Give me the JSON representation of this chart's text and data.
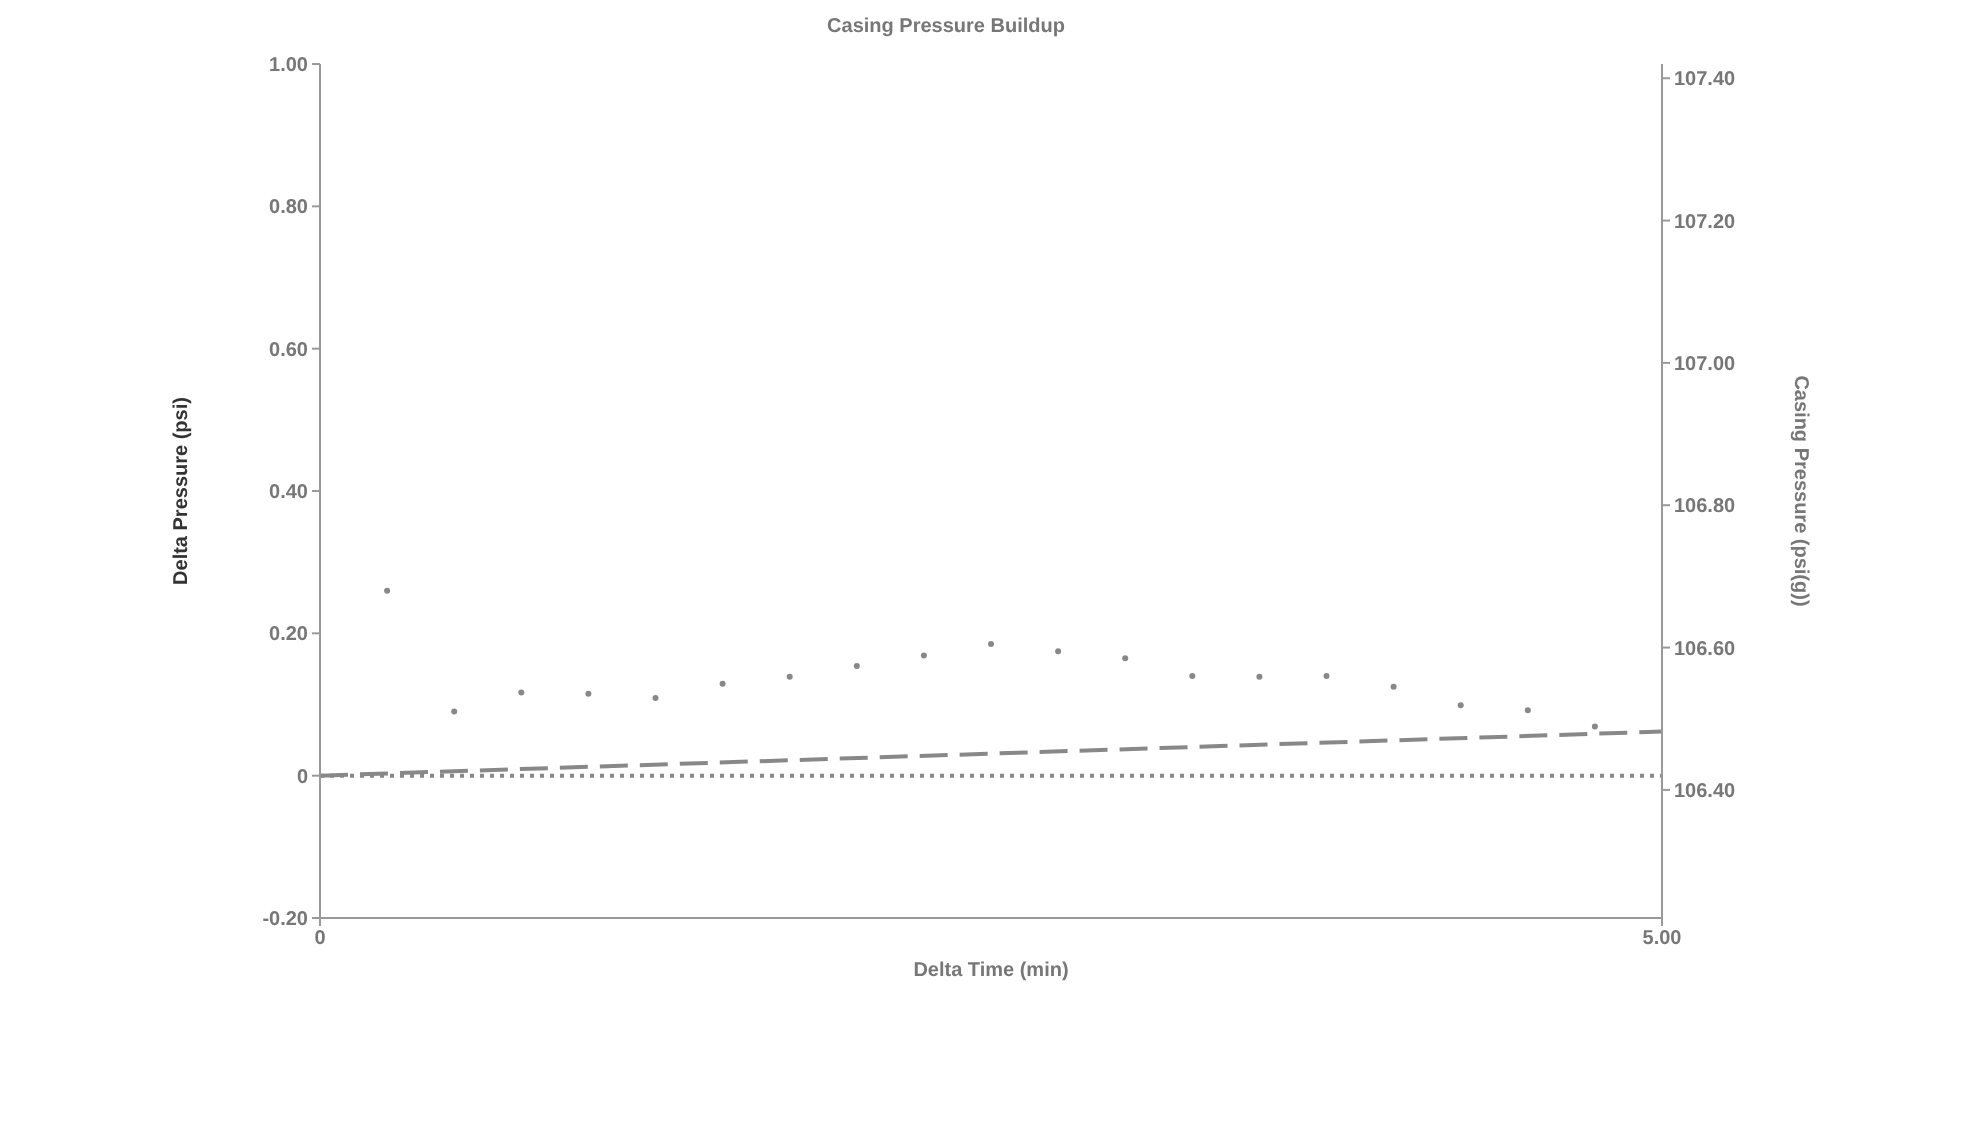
{
  "chart_data": {
    "type": "scatter",
    "title": "Casing Pressure Buildup",
    "xlabel": "Delta Time (min)",
    "ylabel": "Delta Pressure (psi)",
    "y2label": "Casing Pressure (psi(g))",
    "series": [
      {
        "color": "#888888",
        "marker": "circle",
        "x": [
          0.25,
          0.5,
          0.75,
          1.0,
          1.25,
          1.5,
          1.75,
          2.0,
          2.25,
          2.5,
          2.75,
          3.0,
          3.25,
          3.5,
          3.75,
          4.0,
          4.25,
          4.5,
          4.75
        ],
        "values": [
          0.26,
          0.09,
          0.117,
          0.115,
          0.109,
          0.129,
          0.139,
          0.154,
          0.169,
          0.185,
          0.175,
          0.165,
          0.14,
          0.139,
          0.14,
          0.125,
          0.099,
          0.092,
          0.069
        ]
      },
      {
        "type": "line",
        "color": "#888888",
        "line_style": "dashed",
        "marker": "none",
        "x": [
          0,
          5
        ],
        "values": [
          0,
          0.062
        ]
      },
      {
        "type": "line",
        "color": "#888888",
        "line_style": "dotted",
        "marker": "none",
        "x": [
          0,
          5
        ],
        "values": [
          0,
          0
        ]
      }
    ],
    "xlim": [
      0,
      5
    ],
    "xticks": [
      0,
      {
        "value": 5,
        "label": "5.00"
      }
    ],
    "ylim": [
      -0.2,
      1
    ],
    "yticks": [
      {
        "value": -0.2,
        "label": "-0.20"
      },
      0,
      {
        "value": 0.2,
        "label": "0.20"
      },
      {
        "value": 0.4,
        "label": "0.40"
      },
      {
        "value": 0.6,
        "label": "0.60"
      },
      {
        "value": 0.8,
        "label": "0.80"
      },
      {
        "value": 1,
        "label": "1.00"
      }
    ],
    "y2lim": [
      106.22,
      107.42
    ],
    "y2ticks": [
      {
        "value": 106.4,
        "label": "106.40"
      },
      {
        "value": 106.6,
        "label": "106.60"
      },
      {
        "value": 106.8,
        "label": "106.80"
      },
      {
        "value": 107,
        "label": "107.00"
      },
      {
        "value": 107.2,
        "label": "107.20"
      },
      {
        "value": 107.4,
        "label": "107.40"
      }
    ],
    "grid": false,
    "legend": false
  }
}
